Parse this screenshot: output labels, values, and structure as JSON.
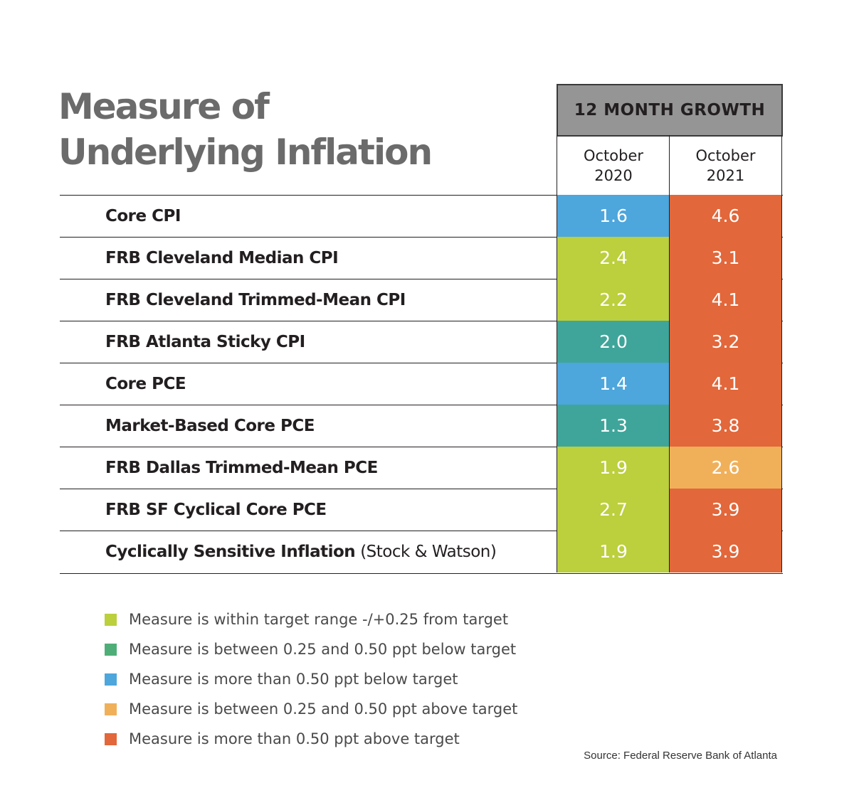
{
  "chart_data": {
    "type": "table",
    "title_lines": [
      "Measure of",
      "Underlying Inflation"
    ],
    "group_header": "12 MONTH GROWTH",
    "columns": [
      {
        "line1": "October",
        "line2": "2020"
      },
      {
        "line1": "October",
        "line2": "2021"
      }
    ],
    "rows": [
      {
        "label": "Core CPI",
        "note": "",
        "values": [
          "1.6",
          "4.6"
        ],
        "colors": [
          "#4da6dc",
          "#e2673a"
        ]
      },
      {
        "label": "FRB Cleveland Median CPI",
        "note": "",
        "values": [
          "2.4",
          "3.1"
        ],
        "colors": [
          "#bccf3c",
          "#e2673a"
        ]
      },
      {
        "label": "FRB Cleveland Trimmed-Mean CPI",
        "note": "",
        "values": [
          "2.2",
          "4.1"
        ],
        "colors": [
          "#bccf3c",
          "#e2673a"
        ]
      },
      {
        "label": "FRB Atlanta Sticky CPI",
        "note": "",
        "values": [
          "2.0",
          "3.2"
        ],
        "colors": [
          "#3fa59a",
          "#e2673a"
        ]
      },
      {
        "label": "Core PCE",
        "note": "",
        "values": [
          "1.4",
          "4.1"
        ],
        "colors": [
          "#4da6dc",
          "#e2673a"
        ]
      },
      {
        "label": "Market-Based Core PCE",
        "note": "",
        "values": [
          "1.3",
          "3.8"
        ],
        "colors": [
          "#3fa59a",
          "#e2673a"
        ]
      },
      {
        "label": "FRB Dallas Trimmed-Mean PCE",
        "note": "",
        "values": [
          "1.9",
          "2.6"
        ],
        "colors": [
          "#bccf3c",
          "#f0b05a"
        ]
      },
      {
        "label": "FRB SF Cyclical Core PCE",
        "note": "",
        "values": [
          "2.7",
          "3.9"
        ],
        "colors": [
          "#bccf3c",
          "#e2673a"
        ]
      },
      {
        "label": "Cyclically Sensitive Inflation",
        "note": "(Stock & Watson)",
        "values": [
          "1.9",
          "3.9"
        ],
        "colors": [
          "#bccf3c",
          "#e2673a"
        ]
      }
    ],
    "legend": [
      {
        "color": "#bccf3c",
        "text": "Measure is within target range -/+0.25 from target"
      },
      {
        "color": "#4fae78",
        "text": "Measure is between 0.25 and 0.50 ppt below target"
      },
      {
        "color": "#4da6dc",
        "text": "Measure is more than 0.50 ppt below target"
      },
      {
        "color": "#f0b05a",
        "text": "Measure is between 0.25 and 0.50 ppt above target"
      },
      {
        "color": "#e2673a",
        "text": "Measure is more than 0.50 ppt above target"
      }
    ],
    "source": "Source: Federal Reserve Bank of Atlanta"
  }
}
